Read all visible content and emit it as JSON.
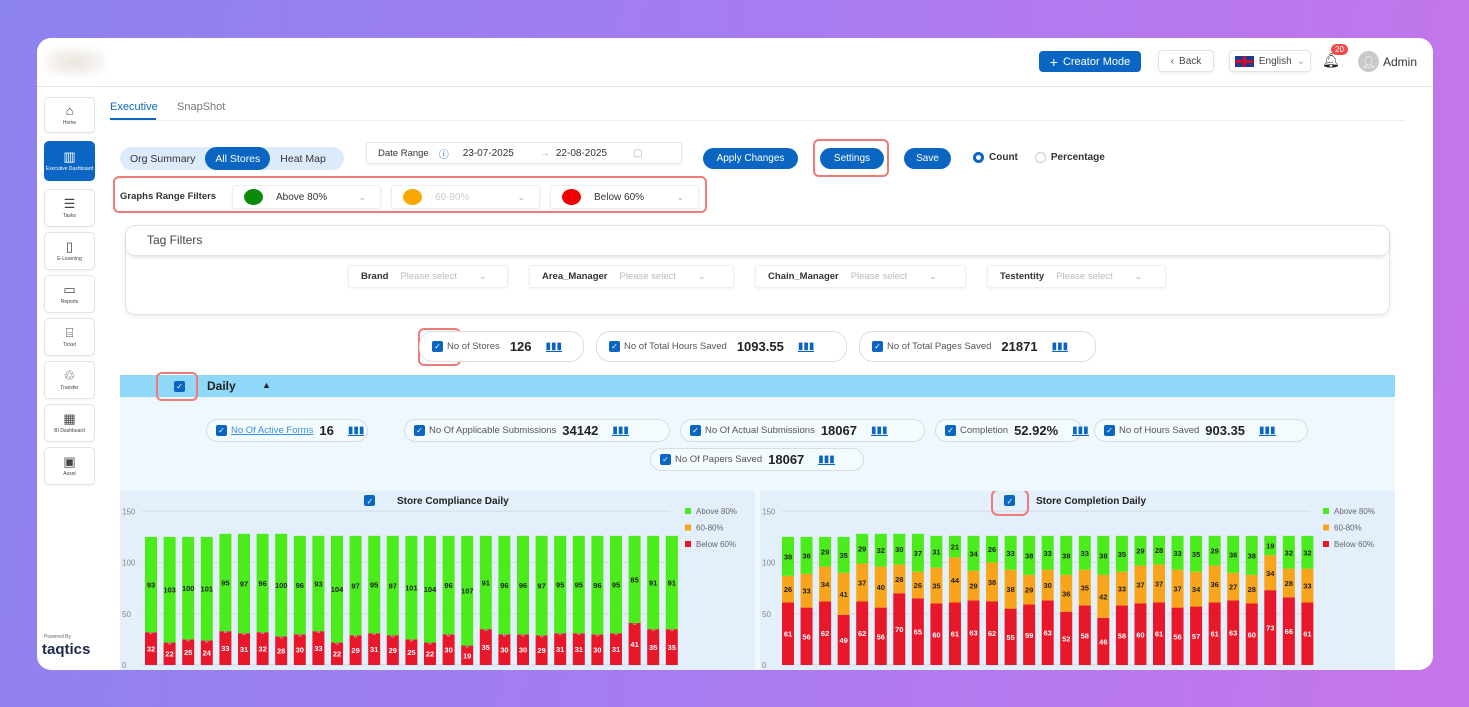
{
  "header": {
    "creator_mode": "Creator Mode",
    "back": "Back",
    "language": "English",
    "notifications": "20",
    "user": "Admin"
  },
  "sidebar": {
    "items": [
      {
        "label": "Home",
        "icon": "⌂"
      },
      {
        "label": "Executive Dashboard",
        "icon": "▥"
      },
      {
        "label": "Tasks",
        "icon": "☰"
      },
      {
        "label": "E-Learning",
        "icon": "▯"
      },
      {
        "label": "Reports",
        "icon": "▭"
      },
      {
        "label": "Ticket",
        "icon": "⌸"
      },
      {
        "label": "Transfer",
        "icon": "♲"
      },
      {
        "label": "BI Dashboard",
        "icon": "▦"
      },
      {
        "label": "Asset",
        "icon": "▣"
      }
    ],
    "powered_by": "Powered By",
    "brand": "taqtics"
  },
  "tabs": [
    {
      "label": "Executive"
    },
    {
      "label": "SnapShot"
    }
  ],
  "view_toggle": [
    "Org Summary",
    "All Stores",
    "Heat Map"
  ],
  "date_range": {
    "label": "Date Range",
    "start": "23-07-2025",
    "end": "22-08-2025"
  },
  "actions": {
    "apply": "Apply Changes",
    "settings": "Settings",
    "save": "Save",
    "count": "Count",
    "percentage": "Percentage"
  },
  "range_filters": {
    "label": "Graphs Range Filters",
    "items": [
      {
        "label": "Above 80%",
        "color": "#0a8a0a"
      },
      {
        "label": "60-80%",
        "color": "#f8a800"
      },
      {
        "label": "Below 60%",
        "color": "#f00000"
      }
    ]
  },
  "tag_filters": {
    "title": "Tag Filters",
    "placeholder": "Please select",
    "items": [
      "Brand",
      "Area_Manager",
      "Chain_Manager",
      "Testentity"
    ]
  },
  "summary": [
    {
      "label": "No of Stores",
      "value": "126"
    },
    {
      "label": "No of Total Hours Saved",
      "value": "1093.55"
    },
    {
      "label": "No of Total Pages Saved",
      "value": "21871"
    }
  ],
  "daily": {
    "title": "Daily",
    "metrics": [
      {
        "label": "No Of Active Forms",
        "value": "16"
      },
      {
        "label": "No Of Applicable Submissions",
        "value": "34142"
      },
      {
        "label": "No Of Actual Submissions",
        "value": "18067"
      },
      {
        "label": "Completion",
        "value": "52.92%"
      },
      {
        "label": "No of Hours Saved",
        "value": "903.35"
      },
      {
        "label": "No Of Papers Saved",
        "value": "18067"
      }
    ]
  },
  "chart_data": [
    {
      "type": "bar",
      "stacked": true,
      "title": "Store Compliance Daily",
      "ylim": [
        0,
        150
      ],
      "yticks": [
        0,
        50,
        100,
        150
      ],
      "legend": "right",
      "colors": {
        "Above 80%": "#4cec1c",
        "60-80%": "#f8a51c",
        "Below 60%": "#e8172a"
      },
      "series": [
        {
          "name": "Below 60%",
          "values": [
            32,
            22,
            25,
            24,
            33,
            31,
            32,
            28,
            30,
            33,
            22,
            29,
            31,
            29,
            25,
            22,
            30,
            19,
            35,
            30,
            30,
            29,
            31,
            31,
            30,
            31,
            41,
            35,
            35
          ]
        },
        {
          "name": "60-80%",
          "values": [
            0,
            0,
            0,
            0,
            0,
            0,
            0,
            0,
            0,
            0,
            0,
            0,
            0,
            0,
            0,
            0,
            0,
            0,
            0,
            0,
            0,
            0,
            0,
            0,
            0,
            0,
            0,
            0,
            0
          ]
        },
        {
          "name": "Above 80%",
          "values": [
            93,
            103,
            100,
            101,
            95,
            97,
            96,
            100,
            96,
            93,
            104,
            97,
            95,
            97,
            101,
            104,
            96,
            107,
            91,
            96,
            96,
            97,
            95,
            95,
            96,
            95,
            85,
            91,
            91
          ]
        }
      ]
    },
    {
      "type": "bar",
      "stacked": true,
      "title": "Store Completion Daily",
      "ylim": [
        0,
        150
      ],
      "yticks": [
        0,
        50,
        100,
        150
      ],
      "legend": "right",
      "colors": {
        "Above 80%": "#4cec1c",
        "60-80%": "#f8a51c",
        "Below 60%": "#e8172a"
      },
      "series": [
        {
          "name": "Below 60%",
          "values": [
            61,
            56,
            62,
            49,
            62,
            56,
            70,
            65,
            60,
            61,
            63,
            62,
            55,
            59,
            63,
            52,
            58,
            46,
            58,
            60,
            61,
            56,
            57,
            61,
            63,
            60,
            73,
            66,
            61
          ]
        },
        {
          "name": "60-80%",
          "values": [
            26,
            33,
            34,
            41,
            37,
            40,
            28,
            26,
            35,
            44,
            29,
            38,
            38,
            29,
            30,
            36,
            35,
            42,
            33,
            37,
            37,
            37,
            34,
            36,
            27,
            28,
            34,
            28,
            33
          ]
        },
        {
          "name": "Above 80%",
          "values": [
            38,
            36,
            29,
            35,
            29,
            32,
            30,
            37,
            31,
            21,
            34,
            26,
            33,
            38,
            33,
            38,
            33,
            38,
            35,
            29,
            28,
            33,
            35,
            29,
            36,
            38,
            19,
            32,
            32
          ]
        }
      ]
    }
  ]
}
